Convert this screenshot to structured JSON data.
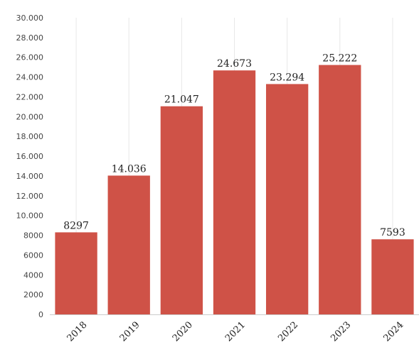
{
  "chart_data": {
    "type": "bar",
    "categories": [
      "2018",
      "2019",
      "2020",
      "2021",
      "2022",
      "2023",
      "2024"
    ],
    "values": [
      8297,
      14036,
      21047,
      24673,
      23294,
      25222,
      7593
    ],
    "value_labels": [
      "8297",
      "14.036",
      "21.047",
      "24.673",
      "23.294",
      "25.222",
      "7593"
    ],
    "y_ticks": [
      0,
      2000,
      4000,
      6000,
      8000,
      10000,
      12000,
      14000,
      16000,
      18000,
      20000,
      22000,
      24000,
      26000,
      28000,
      30000
    ],
    "y_tick_labels": [
      "0",
      "2000",
      "4000",
      "6000",
      "8000",
      "10.000",
      "12.000",
      "14.000",
      "16.000",
      "18.000",
      "20.000",
      "22.000",
      "24.000",
      "26.000",
      "28.000",
      "30.000"
    ],
    "ylim": [
      0,
      30000
    ],
    "title": "",
    "xlabel": "",
    "ylabel": "",
    "bar_color": "#cf5247",
    "grid": "vertical",
    "legend": "none"
  }
}
